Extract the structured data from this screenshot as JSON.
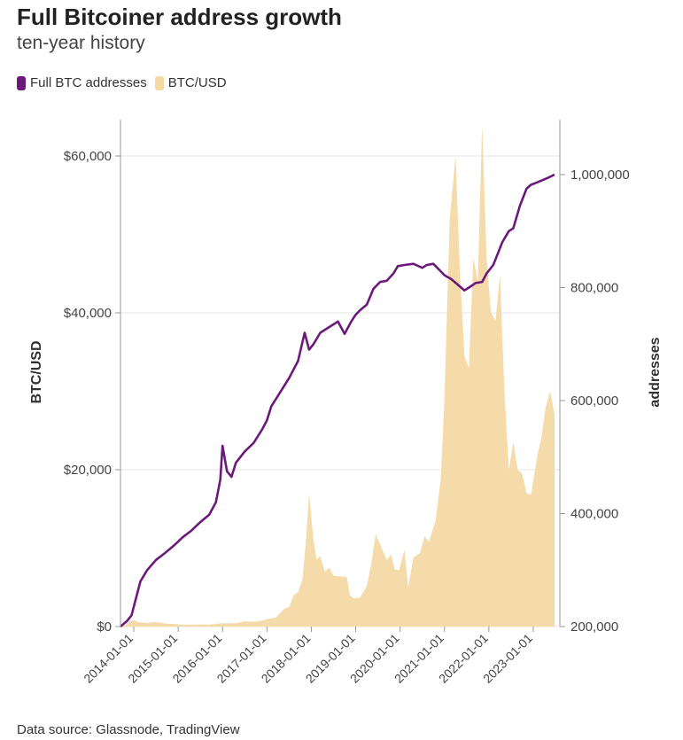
{
  "title": "Full Bitcoiner address growth",
  "subtitle": "ten-year history",
  "source": "Data source: Glassnode, TradingView",
  "colors": {
    "addresses": "#6b1a7a",
    "price": "#f5d9a5",
    "grid": "#e6e6e6",
    "axis": "#999999"
  },
  "legend": [
    {
      "label": "Full BTC addresses",
      "color": "#6b1a7a"
    },
    {
      "label": "BTC/USD",
      "color": "#f5d9a5"
    }
  ],
  "chart_data": {
    "type": "line",
    "xlabel": "",
    "ylabel_left": "BTC/USD",
    "ylabel_right": "addresses",
    "left_ticks": [
      "$0",
      "$20,000",
      "$40,000",
      "$60,000"
    ],
    "right_ticks": [
      "200,000",
      "400,000",
      "600,000",
      "800,000",
      "1,000,000"
    ],
    "x_ticks": [
      "2014-01-01",
      "2015-01-01",
      "2016-01-01",
      "2017-01-01",
      "2018-01-01",
      "2019-01-01",
      "2020-01-01",
      "2021-01-01",
      "2022-01-01",
      "2023-01-01"
    ],
    "x_range": [
      2013.7,
      2023.6
    ],
    "ylim_left": [
      0,
      60000
    ],
    "ylim_right": [
      200000,
      1000000
    ],
    "series": [
      {
        "name": "BTC/USD",
        "axis": "left",
        "kind": "area",
        "points": [
          [
            2013.7,
            120
          ],
          [
            2013.83,
            200
          ],
          [
            2013.92,
            700
          ],
          [
            2014.0,
            800
          ],
          [
            2014.1,
            600
          ],
          [
            2014.3,
            450
          ],
          [
            2014.45,
            600
          ],
          [
            2014.6,
            500
          ],
          [
            2014.75,
            350
          ],
          [
            2014.92,
            330
          ],
          [
            2015.1,
            260
          ],
          [
            2015.3,
            240
          ],
          [
            2015.5,
            270
          ],
          [
            2015.7,
            240
          ],
          [
            2015.9,
            380
          ],
          [
            2016.0,
            430
          ],
          [
            2016.3,
            420
          ],
          [
            2016.5,
            680
          ],
          [
            2016.7,
            620
          ],
          [
            2016.9,
            750
          ],
          [
            2017.0,
            950
          ],
          [
            2017.2,
            1150
          ],
          [
            2017.4,
            2300
          ],
          [
            2017.5,
            2500
          ],
          [
            2017.6,
            4000
          ],
          [
            2017.7,
            4400
          ],
          [
            2017.8,
            6000
          ],
          [
            2017.88,
            11000
          ],
          [
            2017.95,
            17000
          ],
          [
            2018.0,
            14000
          ],
          [
            2018.05,
            11000
          ],
          [
            2018.12,
            8500
          ],
          [
            2018.2,
            9000
          ],
          [
            2018.3,
            7000
          ],
          [
            2018.4,
            7500
          ],
          [
            2018.5,
            6500
          ],
          [
            2018.6,
            6400
          ],
          [
            2018.7,
            6400
          ],
          [
            2018.8,
            6300
          ],
          [
            2018.87,
            4000
          ],
          [
            2018.95,
            3600
          ],
          [
            2019.1,
            3700
          ],
          [
            2019.25,
            5200
          ],
          [
            2019.35,
            8000
          ],
          [
            2019.45,
            11800
          ],
          [
            2019.55,
            10500
          ],
          [
            2019.7,
            8500
          ],
          [
            2019.8,
            9200
          ],
          [
            2019.88,
            7300
          ],
          [
            2019.98,
            7200
          ],
          [
            2020.1,
            9800
          ],
          [
            2020.18,
            5000
          ],
          [
            2020.3,
            8800
          ],
          [
            2020.45,
            9400
          ],
          [
            2020.55,
            11500
          ],
          [
            2020.65,
            10800
          ],
          [
            2020.8,
            13500
          ],
          [
            2020.92,
            19000
          ],
          [
            2021.0,
            29000
          ],
          [
            2021.12,
            52000
          ],
          [
            2021.25,
            60000
          ],
          [
            2021.35,
            45000
          ],
          [
            2021.45,
            34500
          ],
          [
            2021.55,
            33000
          ],
          [
            2021.65,
            47000
          ],
          [
            2021.75,
            44000
          ],
          [
            2021.85,
            64000
          ],
          [
            2021.95,
            47000
          ],
          [
            2022.05,
            40000
          ],
          [
            2022.15,
            39000
          ],
          [
            2022.25,
            45000
          ],
          [
            2022.35,
            30000
          ],
          [
            2022.45,
            20000
          ],
          [
            2022.55,
            23500
          ],
          [
            2022.65,
            20000
          ],
          [
            2022.75,
            19500
          ],
          [
            2022.85,
            17000
          ],
          [
            2022.95,
            16800
          ],
          [
            2023.1,
            22000
          ],
          [
            2023.18,
            24000
          ],
          [
            2023.28,
            28000
          ],
          [
            2023.38,
            30000
          ],
          [
            2023.48,
            27000
          ]
        ]
      },
      {
        "name": "Full BTC addresses",
        "axis": "right",
        "kind": "line",
        "points": [
          [
            2013.7,
            200000
          ],
          [
            2013.85,
            210000
          ],
          [
            2013.95,
            220000
          ],
          [
            2014.05,
            250000
          ],
          [
            2014.15,
            280000
          ],
          [
            2014.3,
            300000
          ],
          [
            2014.5,
            318000
          ],
          [
            2014.7,
            330000
          ],
          [
            2014.9,
            343000
          ],
          [
            2015.1,
            358000
          ],
          [
            2015.3,
            370000
          ],
          [
            2015.5,
            385000
          ],
          [
            2015.7,
            398000
          ],
          [
            2015.85,
            420000
          ],
          [
            2015.95,
            460000
          ],
          [
            2016.0,
            520000
          ],
          [
            2016.1,
            475000
          ],
          [
            2016.2,
            465000
          ],
          [
            2016.3,
            490000
          ],
          [
            2016.5,
            510000
          ],
          [
            2016.7,
            525000
          ],
          [
            2016.9,
            550000
          ],
          [
            2017.0,
            565000
          ],
          [
            2017.1,
            590000
          ],
          [
            2017.3,
            615000
          ],
          [
            2017.5,
            640000
          ],
          [
            2017.7,
            670000
          ],
          [
            2017.85,
            720000
          ],
          [
            2017.95,
            690000
          ],
          [
            2018.05,
            700000
          ],
          [
            2018.2,
            720000
          ],
          [
            2018.4,
            730000
          ],
          [
            2018.6,
            740000
          ],
          [
            2018.75,
            718000
          ],
          [
            2018.9,
            740000
          ],
          [
            2019.0,
            752000
          ],
          [
            2019.1,
            760000
          ],
          [
            2019.25,
            770000
          ],
          [
            2019.4,
            798000
          ],
          [
            2019.55,
            810000
          ],
          [
            2019.7,
            812000
          ],
          [
            2019.85,
            825000
          ],
          [
            2019.95,
            838000
          ],
          [
            2020.1,
            840000
          ],
          [
            2020.3,
            842000
          ],
          [
            2020.5,
            835000
          ],
          [
            2020.6,
            840000
          ],
          [
            2020.75,
            842000
          ],
          [
            2020.9,
            830000
          ],
          [
            2021.0,
            822000
          ],
          [
            2021.15,
            815000
          ],
          [
            2021.3,
            805000
          ],
          [
            2021.45,
            795000
          ],
          [
            2021.55,
            800000
          ],
          [
            2021.7,
            808000
          ],
          [
            2021.85,
            810000
          ],
          [
            2021.95,
            825000
          ],
          [
            2022.1,
            840000
          ],
          [
            2022.2,
            860000
          ],
          [
            2022.3,
            880000
          ],
          [
            2022.45,
            900000
          ],
          [
            2022.55,
            905000
          ],
          [
            2022.7,
            945000
          ],
          [
            2022.85,
            975000
          ],
          [
            2022.95,
            982000
          ],
          [
            2023.05,
            985000
          ],
          [
            2023.2,
            990000
          ],
          [
            2023.35,
            995000
          ],
          [
            2023.48,
            1000000
          ]
        ]
      }
    ]
  }
}
